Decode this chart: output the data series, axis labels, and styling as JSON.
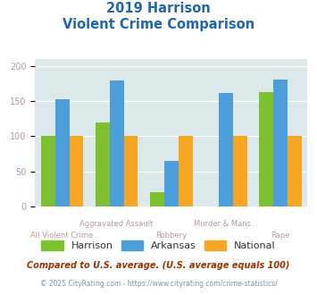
{
  "title_line1": "2019 Harrison",
  "title_line2": "Violent Crime Comparison",
  "categories": [
    "All Violent Crime",
    "Aggravated Assault",
    "Robbery",
    "Murder & Mans...",
    "Rape"
  ],
  "harrison": [
    101,
    120,
    20,
    0,
    163
  ],
  "arkansas": [
    153,
    180,
    65,
    161,
    181
  ],
  "national": [
    100,
    100,
    100,
    100,
    100
  ],
  "color_harrison": "#7dc030",
  "color_arkansas": "#4d9fdb",
  "color_national": "#f5a623",
  "background_plot": "#dde8ea",
  "background_fig": "#ffffff",
  "ylim": [
    0,
    210
  ],
  "yticks": [
    0,
    50,
    100,
    150,
    200
  ],
  "footnote1": "Compared to U.S. average. (U.S. average equals 100)",
  "footnote2": "© 2025 CityRating.com - https://www.cityrating.com/crime-statistics/",
  "title_color": "#2266aa",
  "axis_label_color": "#bb9999",
  "legend_text_color": "#333333",
  "footnote1_color": "#993300",
  "footnote2_color": "#7799aa"
}
